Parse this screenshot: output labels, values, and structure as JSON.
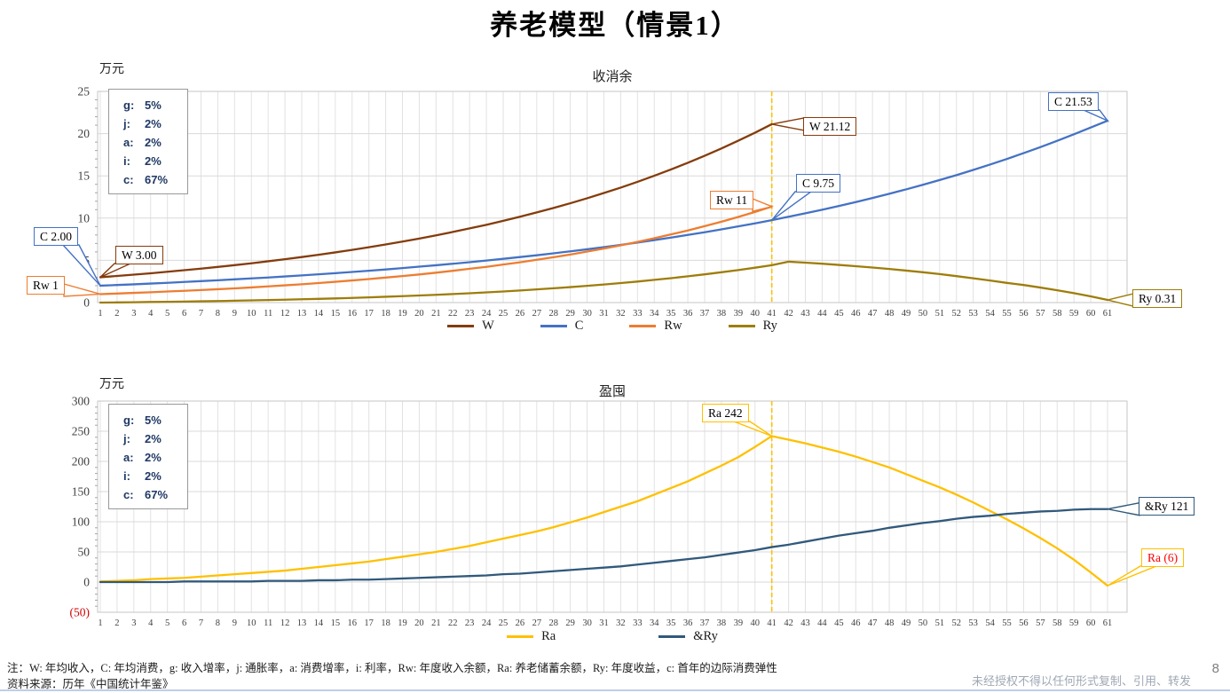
{
  "title": "养老模型（情景1）",
  "page_number": "8",
  "footer": {
    "note": "注：W: 年均收入，C: 年均消费，g: 收入增率，j: 通胀率，a: 消费增率，i: 利率，Rw: 年度收入余额，Ra: 养老储蓄余额，Ry: 年度收益，c: 首年的边际消费弹性",
    "source": "资料来源：历年《中国统计年鉴》",
    "disclaimer": "未经授权不得以任何形式复制、引用、转发"
  },
  "params": {
    "rows": [
      {
        "k": "g:",
        "v": "5%"
      },
      {
        "k": "j:",
        "v": "2%"
      },
      {
        "k": "a:",
        "v": "2%"
      },
      {
        "k": "i:",
        "v": "2%"
      },
      {
        "k": "c:",
        "v": "67%"
      }
    ]
  },
  "chart_data": [
    {
      "type": "line",
      "title": "收消余",
      "unit_label": "万元",
      "x_range": [
        1,
        61
      ],
      "x_tick_step": 1,
      "ylim": [
        0,
        25
      ],
      "y_minor_step": 1,
      "grid": true,
      "legend_position": "bottom",
      "y_ticks": [
        {
          "v": 0,
          "label": "0"
        },
        {
          "v": 5,
          "label": "5"
        },
        {
          "v": 10,
          "label": "10"
        },
        {
          "v": 15,
          "label": "15"
        },
        {
          "v": 20,
          "label": "20"
        },
        {
          "v": 25,
          "label": "25"
        }
      ],
      "vline": {
        "x": 41,
        "color": "#FFC000"
      },
      "series": [
        {
          "name": "W",
          "color": "#843C0C",
          "values": [
            3.0,
            3.15,
            3.31,
            3.47,
            3.65,
            3.83,
            4.02,
            4.22,
            4.43,
            4.65,
            4.89,
            5.13,
            5.39,
            5.66,
            5.94,
            6.24,
            6.55,
            6.88,
            7.22,
            7.58,
            7.96,
            8.36,
            8.78,
            9.21,
            9.68,
            10.16,
            10.67,
            11.2,
            11.76,
            12.35,
            12.97,
            13.61,
            14.29,
            15.01,
            15.76,
            16.55,
            17.38,
            18.24,
            19.16,
            20.11,
            21.12
          ]
        },
        {
          "name": "C",
          "color": "#4472C4",
          "values": [
            2.0,
            2.08,
            2.16,
            2.25,
            2.34,
            2.44,
            2.54,
            2.64,
            2.75,
            2.86,
            2.97,
            3.09,
            3.22,
            3.35,
            3.48,
            3.62,
            3.77,
            3.92,
            4.08,
            4.25,
            4.42,
            4.6,
            4.78,
            4.98,
            5.18,
            5.39,
            5.6,
            5.83,
            6.07,
            6.31,
            6.57,
            6.83,
            7.11,
            7.4,
            7.69,
            8.01,
            8.33,
            8.67,
            9.02,
            9.38,
            9.75,
            10.16,
            10.57,
            10.99,
            11.44,
            11.9,
            12.38,
            12.88,
            13.4,
            13.94,
            14.51,
            15.09,
            15.7,
            16.34,
            17.0,
            17.69,
            18.4,
            19.15,
            19.92,
            20.72,
            21.53
          ]
        },
        {
          "name": "Rw",
          "color": "#ED7D31",
          "values": [
            1.0,
            1.07,
            1.15,
            1.22,
            1.31,
            1.39,
            1.48,
            1.58,
            1.68,
            1.79,
            1.92,
            2.04,
            2.17,
            2.31,
            2.46,
            2.62,
            2.78,
            2.96,
            3.14,
            3.33,
            3.54,
            3.76,
            4.0,
            4.23,
            4.5,
            4.77,
            5.07,
            5.37,
            5.69,
            6.04,
            6.4,
            6.78,
            7.18,
            7.61,
            8.07,
            8.54,
            9.05,
            9.57,
            10.14,
            10.73,
            11.37
          ]
        },
        {
          "name": "Ry",
          "color": "#9E7D0A",
          "values": [
            0.0,
            0.02,
            0.04,
            0.07,
            0.09,
            0.12,
            0.15,
            0.18,
            0.22,
            0.26,
            0.3,
            0.34,
            0.39,
            0.44,
            0.49,
            0.55,
            0.62,
            0.69,
            0.76,
            0.84,
            0.92,
            1.01,
            1.1,
            1.21,
            1.31,
            1.43,
            1.56,
            1.69,
            1.83,
            1.98,
            2.14,
            2.31,
            2.49,
            2.69,
            2.89,
            3.11,
            3.34,
            3.59,
            3.85,
            4.13,
            4.43,
            4.84,
            4.73,
            4.6,
            4.46,
            4.31,
            4.15,
            3.98,
            3.79,
            3.59,
            3.37,
            3.13,
            2.88,
            2.61,
            2.33,
            2.08,
            1.78,
            1.46,
            1.12,
            0.74,
            0.31
          ]
        }
      ],
      "callouts": [
        {
          "label": "C 2.00",
          "x": 1,
          "y": 2.0,
          "color": "#4472C4"
        },
        {
          "label": "W 3.00",
          "x": 1,
          "y": 3.0,
          "color": "#843C0C"
        },
        {
          "label": "Rw 1",
          "x": 1,
          "y": 1.0,
          "color": "#ED7D31"
        },
        {
          "label": "W 21.12",
          "x": 41,
          "y": 21.12,
          "color": "#843C0C"
        },
        {
          "label": "Rw 11",
          "x": 41,
          "y": 11.37,
          "color": "#ED7D31"
        },
        {
          "label": "C 9.75",
          "x": 41,
          "y": 9.75,
          "color": "#4472C4"
        },
        {
          "label": "C 21.53",
          "x": 61,
          "y": 21.53,
          "color": "#4472C4"
        },
        {
          "label": "Ry 0.31",
          "x": 61,
          "y": 0.31,
          "color": "#9E7D0A"
        }
      ]
    },
    {
      "type": "line",
      "title": "盈囤",
      "unit_label": "万元",
      "x_range": [
        1,
        61
      ],
      "x_tick_step": 1,
      "ylim": [
        -50,
        300
      ],
      "y_minor_step": 10,
      "grid": true,
      "legend_position": "bottom",
      "y_ticks": [
        {
          "v": -50,
          "label": "(50)",
          "color": "#D00000"
        },
        {
          "v": 0,
          "label": "0"
        },
        {
          "v": 50,
          "label": "50"
        },
        {
          "v": 100,
          "label": "100"
        },
        {
          "v": 150,
          "label": "150"
        },
        {
          "v": 200,
          "label": "200"
        },
        {
          "v": 250,
          "label": "250"
        },
        {
          "v": 300,
          "label": "300"
        }
      ],
      "vline": {
        "x": 41,
        "color": "#FFC000"
      },
      "series": [
        {
          "name": "Ra",
          "color": "#FFC000",
          "values": [
            1,
            2,
            3,
            5,
            6,
            7,
            9,
            11,
            13,
            15,
            17,
            19,
            22,
            25,
            28,
            31,
            34,
            38,
            42,
            46,
            50,
            55,
            60,
            66,
            72,
            78,
            84,
            91,
            99,
            107,
            116,
            125,
            134,
            145,
            156,
            167,
            180,
            193,
            207,
            224,
            242,
            236,
            230,
            223,
            216,
            208,
            199,
            190,
            179,
            168,
            157,
            145,
            132,
            118,
            104,
            89,
            73,
            56,
            37,
            16,
            -6
          ]
        },
        {
          "name": "&Ry",
          "color": "#31597B",
          "values": [
            0,
            0,
            0,
            0,
            0,
            1,
            1,
            1,
            1,
            1,
            2,
            2,
            2,
            3,
            3,
            4,
            4,
            5,
            6,
            7,
            8,
            9,
            10,
            11,
            13,
            14,
            16,
            18,
            20,
            22,
            24,
            26,
            29,
            32,
            35,
            38,
            41,
            45,
            49,
            53,
            58,
            62,
            67,
            72,
            77,
            81,
            85,
            90,
            94,
            98,
            101,
            105,
            108,
            110,
            113,
            115,
            117,
            118,
            120,
            121,
            121
          ]
        }
      ],
      "callouts": [
        {
          "label": "Ra 242",
          "x": 41,
          "y": 242,
          "color": "#FFC000"
        },
        {
          "label": "&Ry 121",
          "x": 61,
          "y": 121,
          "color": "#31597B"
        },
        {
          "label": "Ra (6)",
          "x": 61,
          "y": -6,
          "color": "#FFC000",
          "text_color": "#FF0000"
        }
      ]
    }
  ]
}
